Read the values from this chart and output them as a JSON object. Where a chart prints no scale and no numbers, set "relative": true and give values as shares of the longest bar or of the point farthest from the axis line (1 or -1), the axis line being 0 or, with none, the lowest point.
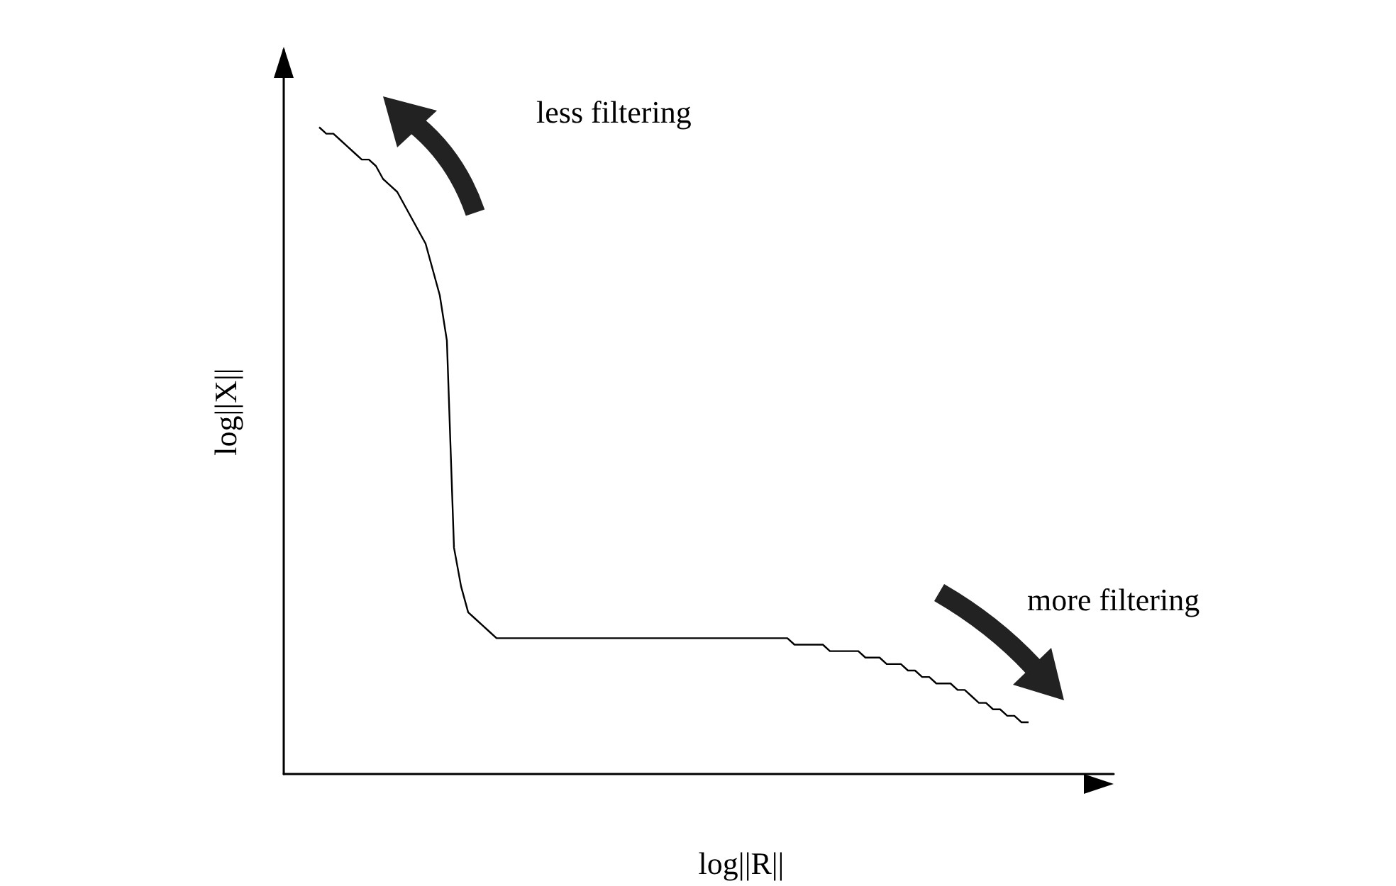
{
  "chart_data": {
    "type": "line",
    "relative": true,
    "xlabel": "log||R||",
    "ylabel": "log||X||",
    "color": "#000000",
    "annotations": [
      "less filtering",
      "more filtering"
    ],
    "categories": [
      null,
      null,
      null,
      null,
      null,
      null,
      null,
      null,
      null,
      null,
      null,
      null,
      null,
      null,
      null,
      null,
      null,
      null,
      null,
      null,
      null,
      null,
      null,
      null,
      null,
      null,
      null,
      null,
      null,
      null,
      null,
      null,
      null,
      null,
      null,
      null,
      null,
      null,
      null,
      null,
      null,
      null,
      null,
      null,
      null,
      null,
      null,
      null,
      null,
      null,
      null,
      null,
      null,
      null,
      null,
      null,
      null,
      null,
      null,
      null,
      null,
      null,
      null,
      null,
      null,
      null,
      null,
      null,
      null,
      null,
      null,
      null,
      null,
      null,
      null,
      null,
      null,
      null,
      null,
      null,
      null,
      null,
      null,
      null,
      null,
      null,
      null,
      null,
      null,
      null,
      null,
      null,
      null,
      null,
      null,
      null,
      null,
      null,
      null,
      null,
      null,
      null,
      null,
      null,
      null,
      null,
      null,
      null,
      null,
      null,
      null,
      null,
      null,
      null,
      null,
      null,
      null,
      null
    ],
    "values": [
      null,
      null,
      null,
      null,
      null,
      1.0,
      0.99,
      0.99,
      0.98,
      0.97,
      0.96,
      0.95,
      0.95,
      0.94,
      0.92,
      0.91,
      0.9,
      0.88,
      0.86,
      0.84,
      0.82,
      0.78,
      0.74,
      0.67,
      0.35,
      0.29,
      0.25,
      0.24,
      0.23,
      0.22,
      0.21,
      0.21,
      0.21,
      0.21,
      0.21,
      0.21,
      0.21,
      0.21,
      0.21,
      0.21,
      0.21,
      0.21,
      0.21,
      0.21,
      0.21,
      0.21,
      0.21,
      0.21,
      0.21,
      0.21,
      0.21,
      0.21,
      0.21,
      0.21,
      0.21,
      0.21,
      0.21,
      0.21,
      0.21,
      0.21,
      0.21,
      0.21,
      0.21,
      0.21,
      0.21,
      0.21,
      0.21,
      0.21,
      0.21,
      0.21,
      0.21,
      0.21,
      0.2,
      0.2,
      0.2,
      0.2,
      0.2,
      0.19,
      0.19,
      0.19,
      0.19,
      0.19,
      0.18,
      0.18,
      0.18,
      0.17,
      0.17,
      0.17,
      0.16,
      0.16,
      0.15,
      0.15,
      0.14,
      0.14,
      0.14,
      0.13,
      0.13,
      0.12,
      0.11,
      0.11,
      0.1,
      0.1,
      0.09,
      0.09,
      0.08,
      0.08,
      null,
      null,
      null,
      null,
      null,
      null,
      null,
      null,
      null,
      null,
      null,
      null
    ]
  }
}
